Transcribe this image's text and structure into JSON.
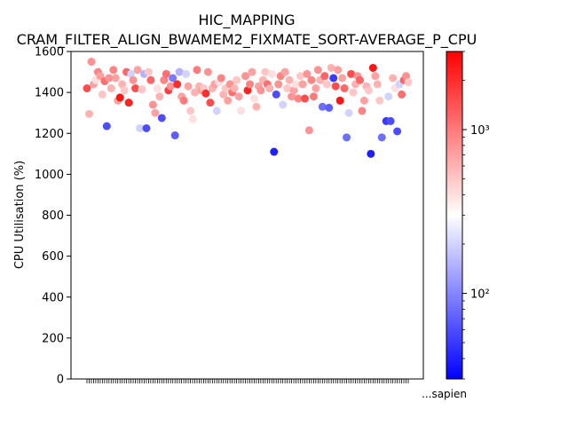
{
  "chart_data": {
    "type": "scatter",
    "title": "HIC_MAPPING",
    "subtitle": "CRAM_FILTER_ALIGN_BWAMEM2_FIXMATE_SORT-AVERAGE_P_CPU",
    "xlabel": "",
    "ylabel": "CPU Utilisation (%)",
    "ylim": [
      0,
      1600
    ],
    "yticks": [
      0,
      200,
      400,
      600,
      800,
      1000,
      1200,
      1400,
      1600
    ],
    "grid": false,
    "colormap": "bwr",
    "colorbar": {
      "scale": "log",
      "range": [
        30,
        3000
      ],
      "major_ticks": [
        100,
        1000
      ],
      "major_labels": [
        "10²",
        "10³"
      ],
      "minor_ticks": [
        30,
        40,
        50,
        60,
        70,
        80,
        90,
        200,
        300,
        400,
        500,
        600,
        700,
        800,
        900,
        2000,
        3000
      ]
    },
    "x_tick_text_visible": "...sapien",
    "points": [
      {
        "y": 1420,
        "c": 1500
      },
      {
        "y": 1295,
        "c": 600
      },
      {
        "y": 1550,
        "c": 800
      },
      {
        "y": 1440,
        "c": 700
      },
      {
        "y": 1460,
        "c": 400
      },
      {
        "y": 1500,
        "c": 900
      },
      {
        "y": 1480,
        "c": 700
      },
      {
        "y": 1390,
        "c": 500
      },
      {
        "y": 1455,
        "c": 1100
      },
      {
        "y": 1235,
        "c": 60
      },
      {
        "y": 1470,
        "c": 800
      },
      {
        "y": 1420,
        "c": 600
      },
      {
        "y": 1510,
        "c": 900
      },
      {
        "y": 1470,
        "c": 700
      },
      {
        "y": 1360,
        "c": 700
      },
      {
        "y": 1375,
        "c": 2500
      },
      {
        "y": 1440,
        "c": 600
      },
      {
        "y": 1410,
        "c": 500
      },
      {
        "y": 1500,
        "c": 1200
      },
      {
        "y": 1350,
        "c": 2200
      },
      {
        "y": 1490,
        "c": 200
      },
      {
        "y": 1460,
        "c": 800
      },
      {
        "y": 1420,
        "c": 1500
      },
      {
        "y": 1510,
        "c": 700
      },
      {
        "y": 1225,
        "c": 200
      },
      {
        "y": 1415,
        "c": 500
      },
      {
        "y": 1490,
        "c": 150
      },
      {
        "y": 1225,
        "c": 60
      },
      {
        "y": 1500,
        "c": 500
      },
      {
        "y": 1460,
        "c": 1200
      },
      {
        "y": 1340,
        "c": 800
      },
      {
        "y": 1300,
        "c": 700
      },
      {
        "y": 1420,
        "c": 400
      },
      {
        "y": 1380,
        "c": 600
      },
      {
        "y": 1275,
        "c": 60
      },
      {
        "y": 1460,
        "c": 900
      },
      {
        "y": 1490,
        "c": 1100
      },
      {
        "y": 1410,
        "c": 1700
      },
      {
        "y": 1430,
        "c": 800
      },
      {
        "y": 1470,
        "c": 90
      },
      {
        "y": 1190,
        "c": 70
      },
      {
        "y": 1440,
        "c": 2000
      },
      {
        "y": 1500,
        "c": 150
      },
      {
        "y": 1380,
        "c": 700
      },
      {
        "y": 1360,
        "c": 1000
      },
      {
        "y": 1490,
        "c": 200
      },
      {
        "y": 1430,
        "c": 700
      },
      {
        "y": 1310,
        "c": 500
      },
      {
        "y": 1270,
        "c": 400
      },
      {
        "y": 1400,
        "c": 600
      },
      {
        "y": 1510,
        "c": 1000
      },
      {
        "y": 1430,
        "c": 600
      },
      {
        "y": 1410,
        "c": 700
      },
      {
        "y": 1420,
        "c": 500
      },
      {
        "y": 1395,
        "c": 2000
      },
      {
        "y": 1500,
        "c": 800
      },
      {
        "y": 1350,
        "c": 1500
      },
      {
        "y": 1420,
        "c": 600
      },
      {
        "y": 1440,
        "c": 700
      },
      {
        "y": 1310,
        "c": 200
      },
      {
        "y": 1450,
        "c": 400
      },
      {
        "y": 1470,
        "c": 900
      },
      {
        "y": 1390,
        "c": 600
      },
      {
        "y": 1420,
        "c": 500
      },
      {
        "y": 1360,
        "c": 700
      },
      {
        "y": 1440,
        "c": 800
      },
      {
        "y": 1400,
        "c": 1100
      },
      {
        "y": 1420,
        "c": 600
      },
      {
        "y": 1460,
        "c": 500
      },
      {
        "y": 1380,
        "c": 700
      },
      {
        "y": 1310,
        "c": 400
      },
      {
        "y": 1270,
        "c": 300
      },
      {
        "y": 1480,
        "c": 800
      },
      {
        "y": 1410,
        "c": 2200
      },
      {
        "y": 1440,
        "c": 900
      },
      {
        "y": 1500,
        "c": 700
      },
      {
        "y": 1370,
        "c": 400
      },
      {
        "y": 1330,
        "c": 600
      },
      {
        "y": 1430,
        "c": 700
      },
      {
        "y": 1410,
        "c": 800
      },
      {
        "y": 1460,
        "c": 600
      },
      {
        "y": 1500,
        "c": 500
      },
      {
        "y": 1440,
        "c": 1100
      },
      {
        "y": 1420,
        "c": 600
      },
      {
        "y": 1490,
        "c": 400
      },
      {
        "y": 1110,
        "c": 40
      },
      {
        "y": 1390,
        "c": 60
      },
      {
        "y": 1440,
        "c": 800
      },
      {
        "y": 1480,
        "c": 900
      },
      {
        "y": 1340,
        "c": 200
      },
      {
        "y": 1500,
        "c": 700
      },
      {
        "y": 1420,
        "c": 500
      },
      {
        "y": 1460,
        "c": 600
      },
      {
        "y": 1380,
        "c": 800
      },
      {
        "y": 1410,
        "c": 700
      },
      {
        "y": 1440,
        "c": 400
      },
      {
        "y": 1370,
        "c": 900
      },
      {
        "y": 1480,
        "c": 500
      },
      {
        "y": 1440,
        "c": 700
      },
      {
        "y": 1370,
        "c": 1500
      },
      {
        "y": 1490,
        "c": 800
      },
      {
        "y": 1215,
        "c": 800
      },
      {
        "y": 1460,
        "c": 900
      },
      {
        "y": 1380,
        "c": 1000
      },
      {
        "y": 1420,
        "c": 700
      },
      {
        "y": 1510,
        "c": 800
      },
      {
        "y": 1460,
        "c": 600
      },
      {
        "y": 1330,
        "c": 80
      },
      {
        "y": 1480,
        "c": 1200
      },
      {
        "y": 1440,
        "c": 500
      },
      {
        "y": 1325,
        "c": 70
      },
      {
        "y": 1520,
        "c": 600
      },
      {
        "y": 1470,
        "c": 50
      },
      {
        "y": 1430,
        "c": 1500
      },
      {
        "y": 1510,
        "c": 700
      },
      {
        "y": 1360,
        "c": 2500
      },
      {
        "y": 1470,
        "c": 700
      },
      {
        "y": 1420,
        "c": 1200
      },
      {
        "y": 1180,
        "c": 80
      },
      {
        "y": 1300,
        "c": 200
      },
      {
        "y": 1490,
        "c": 1500
      },
      {
        "y": 1400,
        "c": 500
      },
      {
        "y": 1440,
        "c": 600
      },
      {
        "y": 1480,
        "c": 800
      },
      {
        "y": 1460,
        "c": 1200
      },
      {
        "y": 1310,
        "c": 900
      },
      {
        "y": 1360,
        "c": 700
      },
      {
        "y": 1430,
        "c": 600
      },
      {
        "y": 1410,
        "c": 500
      },
      {
        "y": 1100,
        "c": 40
      },
      {
        "y": 1520,
        "c": 2500
      },
      {
        "y": 1480,
        "c": 700
      },
      {
        "y": 1440,
        "c": 600
      },
      {
        "y": 1360,
        "c": 500
      },
      {
        "y": 1180,
        "c": 80
      },
      {
        "y": 1420,
        "c": 300
      },
      {
        "y": 1260,
        "c": 50
      },
      {
        "y": 1380,
        "c": 200
      },
      {
        "y": 1260,
        "c": 60
      },
      {
        "y": 1470,
        "c": 600
      },
      {
        "y": 1420,
        "c": 400
      },
      {
        "y": 1210,
        "c": 60
      },
      {
        "y": 1440,
        "c": 200
      },
      {
        "y": 1390,
        "c": 1100
      },
      {
        "y": 1460,
        "c": 1200
      },
      {
        "y": 1480,
        "c": 800
      },
      {
        "y": 1450,
        "c": 500
      }
    ]
  }
}
